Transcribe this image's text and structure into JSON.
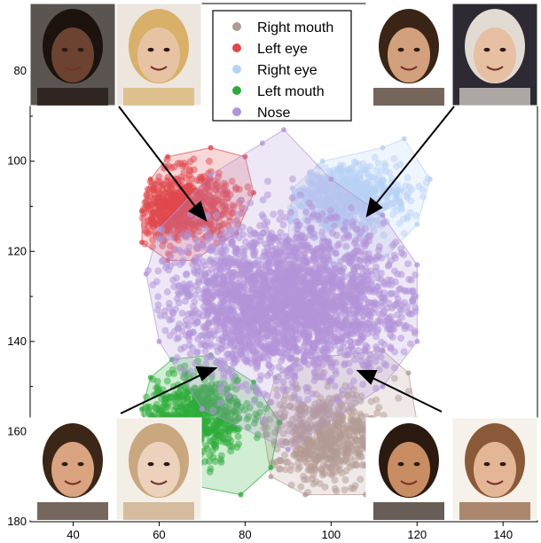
{
  "chart_data": {
    "type": "scatter",
    "title": "",
    "xlabel": "",
    "ylabel": "",
    "xlim": [
      30,
      148
    ],
    "ylim": [
      180,
      65
    ],
    "x_ticks": [
      40,
      60,
      80,
      100,
      120,
      140
    ],
    "y_ticks": [
      80,
      100,
      120,
      140,
      160,
      180
    ],
    "grid": false,
    "legend_position": "top-center",
    "series": [
      {
        "name": "Right mouth",
        "color": "#b49a94",
        "center": [
          99,
          161
        ],
        "spread": [
          7,
          5
        ],
        "count": 650,
        "hull": [
          [
            92,
            144
          ],
          [
            112,
            142
          ],
          [
            118,
            147
          ],
          [
            120,
            158
          ],
          [
            118,
            168
          ],
          [
            108,
            174
          ],
          [
            94,
            174
          ],
          [
            86,
            170
          ],
          [
            84,
            158
          ],
          [
            87,
            148
          ]
        ]
      },
      {
        "name": "Left eye",
        "color": "#e0474c",
        "center": [
          65,
          110
        ],
        "spread": [
          6,
          4
        ],
        "count": 650,
        "hull": [
          [
            62,
            99
          ],
          [
            72,
            97
          ],
          [
            80,
            99
          ],
          [
            82,
            107
          ],
          [
            78,
            116
          ],
          [
            68,
            122
          ],
          [
            62,
            122
          ],
          [
            56,
            118
          ],
          [
            56,
            111
          ],
          [
            58,
            104
          ]
        ]
      },
      {
        "name": "Right eye",
        "color": "#b7d2f5",
        "center": [
          103,
          108
        ],
        "spread": [
          7,
          4
        ],
        "count": 650,
        "hull": [
          [
            98,
            100
          ],
          [
            112,
            97
          ],
          [
            117,
            95
          ],
          [
            123,
            104
          ],
          [
            120,
            114
          ],
          [
            113,
            121
          ],
          [
            99,
            123
          ],
          [
            90,
            117
          ],
          [
            91,
            106
          ]
        ]
      },
      {
        "name": "Left mouth",
        "color": "#2eab3a",
        "center": [
          68,
          157
        ],
        "spread": [
          6,
          5
        ],
        "count": 650,
        "hull": [
          [
            63,
            144
          ],
          [
            72,
            143
          ],
          [
            82,
            149
          ],
          [
            88,
            158
          ],
          [
            86,
            168
          ],
          [
            79,
            174
          ],
          [
            68,
            172
          ],
          [
            58,
            165
          ],
          [
            56,
            155
          ],
          [
            58,
            148
          ]
        ]
      },
      {
        "name": "Nose",
        "color": "#b294d8",
        "center": [
          90,
          131
        ],
        "spread": [
          14,
          8
        ],
        "count": 2600,
        "hull": [
          [
            89,
            93
          ],
          [
            100,
            104
          ],
          [
            112,
            112
          ],
          [
            120,
            123
          ],
          [
            120,
            140
          ],
          [
            112,
            150
          ],
          [
            90,
            164
          ],
          [
            70,
            155
          ],
          [
            60,
            140
          ],
          [
            57,
            125
          ],
          [
            60,
            115
          ],
          [
            72,
            103
          ],
          [
            84,
            96
          ]
        ]
      }
    ]
  },
  "legend": {
    "items": [
      "Right mouth",
      "Left eye",
      "Right eye",
      "Left mouth",
      "Nose"
    ]
  },
  "photos": {
    "top_left": [
      "face-photo",
      "face-photo"
    ],
    "top_right": [
      "face-photo",
      "face-photo"
    ],
    "bottom_left": [
      "face-photo",
      "face-photo"
    ],
    "bottom_right": [
      "face-photo",
      "face-photo"
    ]
  }
}
